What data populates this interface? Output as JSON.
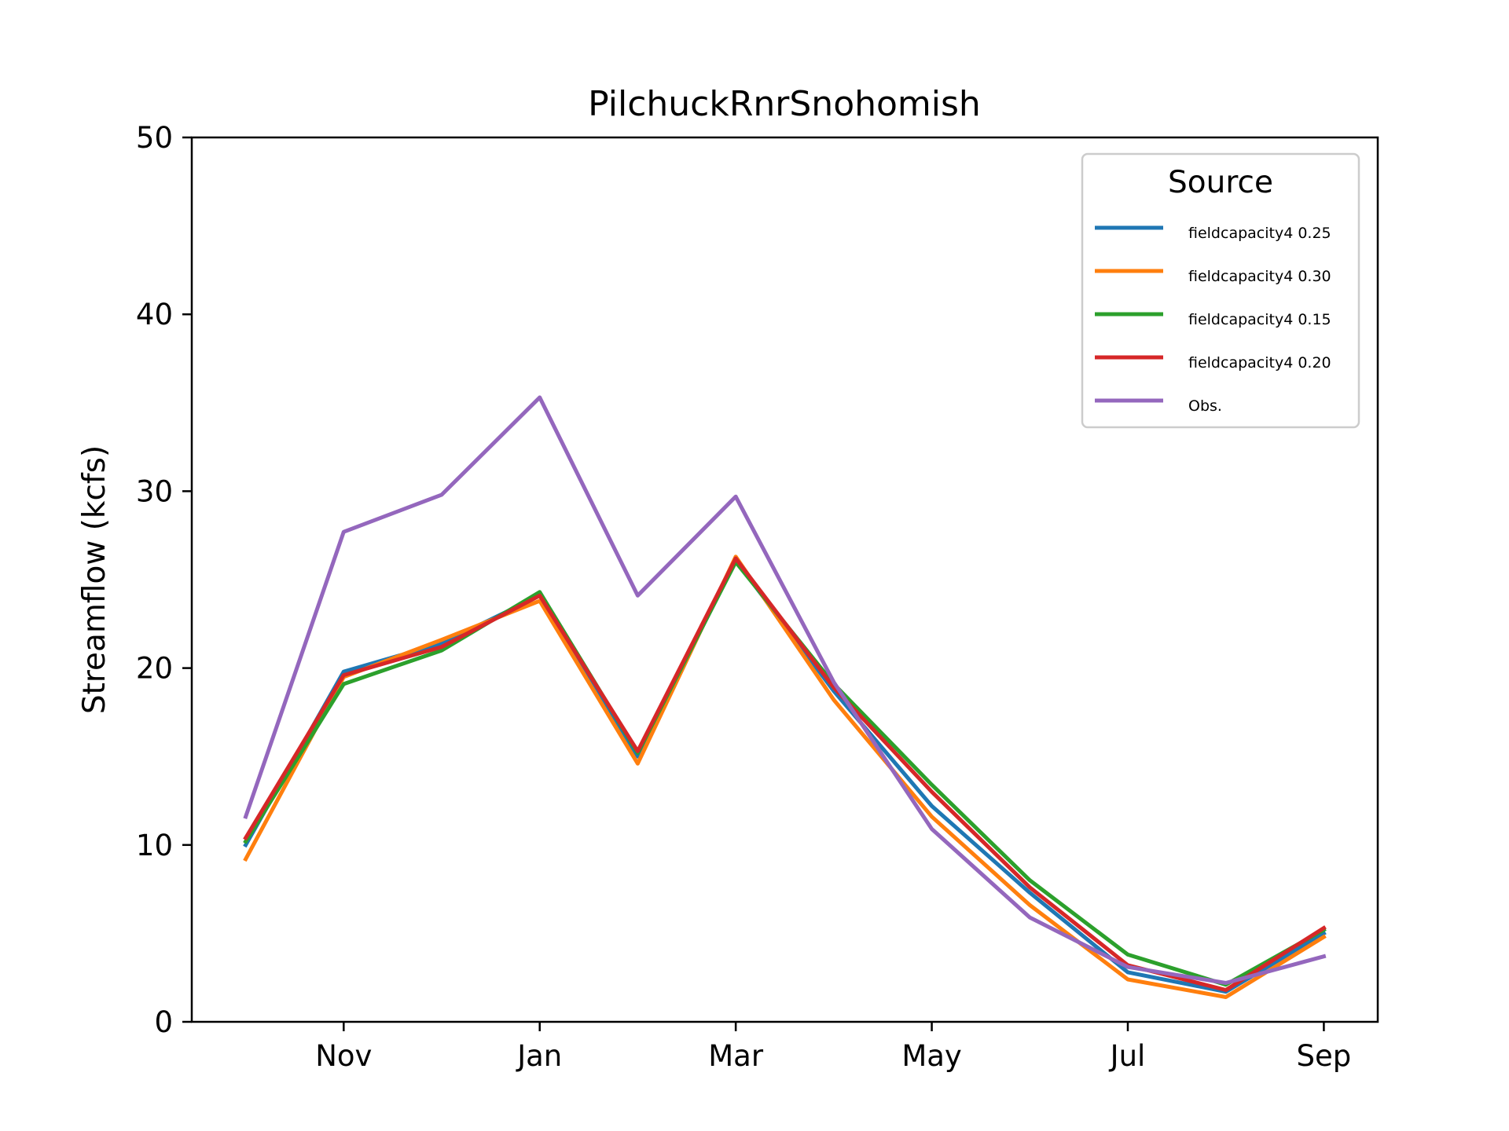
{
  "chart_data": {
    "type": "line",
    "title": "PilchuckRnrSnohomish",
    "xlabel": "",
    "ylabel": "Streamflow (kcfs)",
    "ylim": [
      0,
      50
    ],
    "yticks": [
      "0",
      "10",
      "20",
      "30",
      "40",
      "50"
    ],
    "xlim": [
      9.45,
      21.55
    ],
    "x": [
      10,
      11,
      12,
      13,
      14,
      15,
      16,
      17,
      18,
      19,
      20,
      21
    ],
    "xticks": [
      {
        "x": 11,
        "label": "Nov"
      },
      {
        "x": 13,
        "label": "Jan"
      },
      {
        "x": 15,
        "label": "Mar"
      },
      {
        "x": 17,
        "label": "May"
      },
      {
        "x": 19,
        "label": "Jul"
      },
      {
        "x": 21,
        "label": "Sep"
      }
    ],
    "grid": false,
    "legend": {
      "title": "Source",
      "placement": "top-right"
    },
    "series": [
      {
        "name": "fieldcapacity4 0.25",
        "color": "#1f77b4",
        "values": [
          10.0,
          19.8,
          21.4,
          24.1,
          15.0,
          26.1,
          18.7,
          12.2,
          7.3,
          2.8,
          1.7,
          5.0
        ]
      },
      {
        "name": "fieldcapacity4 0.30",
        "color": "#ff7f0e",
        "values": [
          9.2,
          19.5,
          21.6,
          23.8,
          14.6,
          26.3,
          18.2,
          11.6,
          6.6,
          2.4,
          1.4,
          4.8
        ]
      },
      {
        "name": "fieldcapacity4 0.15",
        "color": "#2ca02c",
        "values": [
          10.2,
          19.1,
          21.0,
          24.3,
          15.2,
          26.0,
          19.1,
          13.4,
          8.0,
          3.8,
          2.1,
          5.2
        ]
      },
      {
        "name": "fieldcapacity4 0.20",
        "color": "#d62728",
        "values": [
          10.4,
          19.6,
          21.2,
          24.1,
          15.3,
          26.2,
          18.9,
          13.0,
          7.6,
          3.2,
          1.8,
          5.3
        ]
      },
      {
        "name": "Obs.",
        "color": "#9467bd",
        "values": [
          11.6,
          27.7,
          29.8,
          35.3,
          24.1,
          29.7,
          19.2,
          10.9,
          5.9,
          3.1,
          2.2,
          3.7
        ]
      }
    ]
  }
}
